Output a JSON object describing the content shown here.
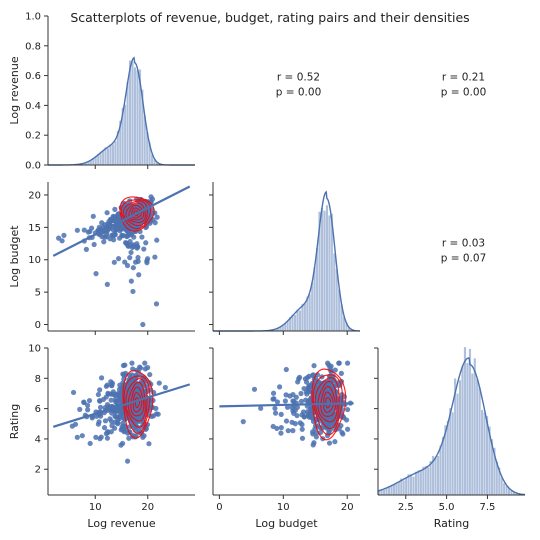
{
  "chart_data": {
    "type": "scatter",
    "title": "Scatterplots of revenue, budget, rating pairs and their densities",
    "variables": [
      "Log revenue",
      "Log budget",
      "Rating"
    ],
    "axes": {
      "x": [
        {
          "label": "Log revenue",
          "range": [
            1,
            29
          ],
          "ticks": [
            10,
            20
          ],
          "tick_labels": [
            "10",
            "20"
          ]
        },
        {
          "label": "Log budget",
          "range": [
            -1,
            22
          ],
          "ticks": [
            0,
            10,
            20
          ],
          "tick_labels": [
            "0",
            "10",
            "20"
          ]
        },
        {
          "label": "Rating",
          "range": [
            0.8,
            9.8
          ],
          "ticks": [
            2.5,
            5.0,
            7.5
          ],
          "tick_labels": [
            "2.5",
            "5.0",
            "7.5"
          ]
        }
      ],
      "y": [
        {
          "label": "Log revenue",
          "range": [
            0,
            1.0
          ],
          "ticks": [
            0.0,
            0.2,
            0.4,
            0.6,
            0.8,
            1.0
          ],
          "tick_labels": [
            "0.0",
            "0.2",
            "0.4",
            "0.6",
            "0.8",
            "1.0"
          ]
        },
        {
          "label": "Log budget",
          "range": [
            -1,
            22
          ],
          "ticks": [
            0,
            5,
            10,
            15,
            20
          ],
          "tick_labels": [
            "0",
            "5",
            "10",
            "15",
            "20"
          ]
        },
        {
          "label": "Rating",
          "range": [
            0.3,
            10
          ],
          "ticks": [
            2,
            4,
            6,
            8,
            10
          ],
          "tick_labels": [
            "2",
            "4",
            "6",
            "8",
            "10"
          ]
        }
      ]
    },
    "correlations": [
      {
        "row": 0,
        "col": 1,
        "r_text": "r = 0.52",
        "p_text": "p = 0.00"
      },
      {
        "row": 0,
        "col": 2,
        "r_text": "r = 0.21",
        "p_text": "p = 0.00"
      },
      {
        "row": 1,
        "col": 2,
        "r_text": "r = 0.03",
        "p_text": "p = 0.07"
      }
    ],
    "distributions": [
      {
        "variable": "Log revenue",
        "mean": 17.5,
        "sd": 1.6,
        "skew_tail": "left",
        "peak_density": 0.72
      },
      {
        "variable": "Log budget",
        "mean": 16.8,
        "sd": 1.3,
        "skew_tail": "left"
      },
      {
        "variable": "Rating",
        "mean": 6.4,
        "sd": 1.0,
        "skew_tail": "left"
      }
    ],
    "regressions": [
      {
        "x": "Log revenue",
        "y": "Log budget",
        "x_range": [
          2,
          28
        ],
        "y_at_start": 10.6,
        "y_at_end": 21.3
      },
      {
        "x": "Log revenue",
        "y": "Rating",
        "x_range": [
          2,
          28
        ],
        "y_at_start": 4.8,
        "y_at_end": 7.6
      },
      {
        "x": "Log budget",
        "y": "Rating",
        "x_range": [
          0,
          21
        ],
        "y_at_start": 6.15,
        "y_at_end": 6.35
      }
    ],
    "scatter_summary": [
      {
        "x": "Log revenue",
        "y": "Log budget",
        "center": [
          17.5,
          16.8
        ]
      },
      {
        "x": "Log revenue",
        "y": "Rating",
        "center": [
          18.0,
          6.4
        ]
      },
      {
        "x": "Log budget",
        "y": "Rating",
        "center": [
          17.0,
          6.4
        ]
      }
    ],
    "colors": {
      "scatter": "#4c72b0",
      "kde_contour": "#ff0000",
      "hist": "#4c72b0",
      "kde_line": "#4c72b0"
    },
    "grid": false,
    "legend": "none"
  }
}
